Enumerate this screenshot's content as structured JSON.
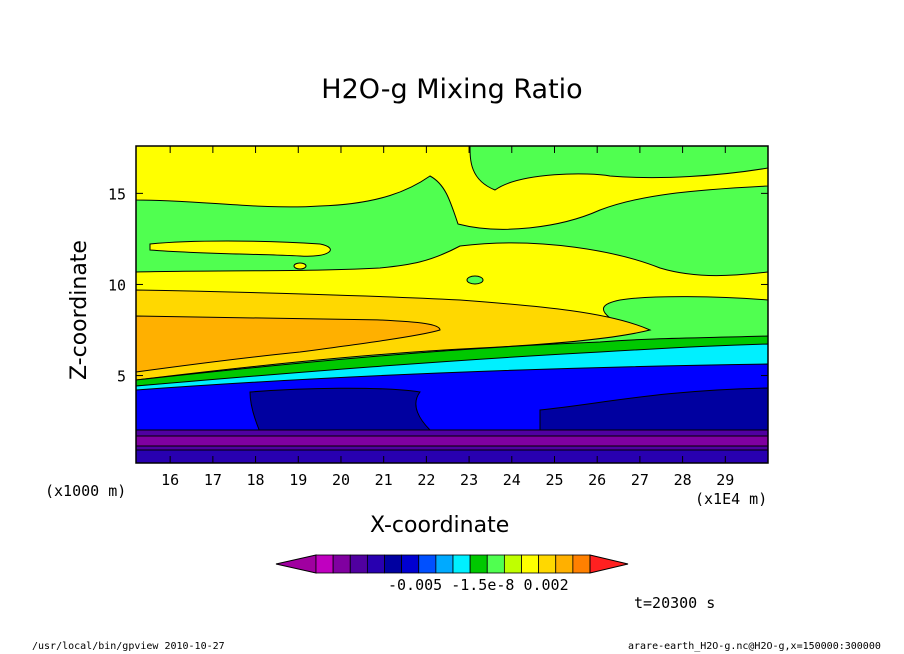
{
  "chart_data": {
    "type": "heatmap",
    "title": "H2O-g Mixing Ratio",
    "xlabel": "X-coordinate",
    "ylabel": "Z-coordinate",
    "x_unit_label": "(x1000 m)",
    "x_multiplier_label": "(x1E4 m)",
    "xlim": [
      15.2,
      30.0
    ],
    "ylim": [
      0.2,
      17.6
    ],
    "xticks": [
      "16",
      "17",
      "18",
      "19",
      "20",
      "21",
      "22",
      "23",
      "24",
      "25",
      "26",
      "27",
      "28",
      "29"
    ],
    "yticks": [
      "5",
      "10",
      "15"
    ],
    "colorbar": {
      "tick_labels": "-0.005  -1.5e-8  0.002",
      "colors": [
        "#a000a0",
        "#c000c0",
        "#8000a0",
        "#5000a0",
        "#2800b0",
        "#0000a0",
        "#0000d0",
        "#0050ff",
        "#00aaff",
        "#00f0ff",
        "#00c800",
        "#50ff50",
        "#c0ff00",
        "#ffff00",
        "#ffd800",
        "#ffb000",
        "#ff8000",
        "#ff2020"
      ]
    },
    "time_label": "t=20300 s",
    "footer_left": "/usr/local/bin/gpview  2010-10-27",
    "footer_right": "arare-earth_H2O-g.nc@H2O-g,x=150000:300000",
    "grid": false
  }
}
